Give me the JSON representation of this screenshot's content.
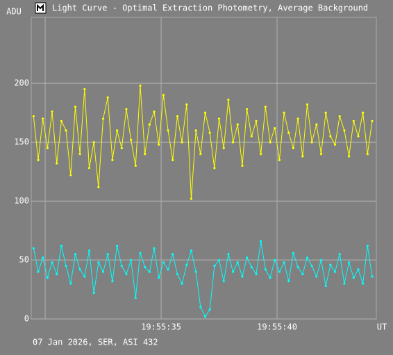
{
  "chart_data": {
    "type": "line",
    "title": "Light Curve - Optimal Extraction Photometry, Average Background",
    "ylabel": "ADU",
    "xlabel": "UT",
    "footer": "07 Jan 2026, SER, ASI 432",
    "x": [
      29.5,
      29.7,
      29.9,
      30.1,
      30.3,
      30.5,
      30.7,
      30.9,
      31.1,
      31.3,
      31.5,
      31.7,
      31.9,
      32.1,
      32.3,
      32.5,
      32.7,
      32.9,
      33.1,
      33.3,
      33.5,
      33.7,
      33.9,
      34.1,
      34.3,
      34.5,
      34.7,
      34.9,
      35.1,
      35.3,
      35.5,
      35.7,
      35.9,
      36.1,
      36.3,
      36.5,
      36.7,
      36.9,
      37.1,
      37.3,
      37.5,
      37.7,
      37.9,
      38.1,
      38.3,
      38.5,
      38.7,
      38.9,
      39.1,
      39.3,
      39.5,
      39.7,
      39.9,
      40.1,
      40.3,
      40.5,
      40.7,
      40.9,
      41.1,
      41.3,
      41.5,
      41.7,
      41.9,
      42.1,
      42.3,
      42.5,
      42.7,
      42.9,
      43.1,
      43.3,
      43.5,
      43.7,
      43.9,
      44.1
    ],
    "series": [
      {
        "color": "#ffff00",
        "values": [
          172,
          135,
          170,
          145,
          176,
          132,
          168,
          160,
          122,
          180,
          140,
          195,
          128,
          150,
          112,
          170,
          188,
          135,
          160,
          145,
          178,
          152,
          130,
          198,
          140,
          165,
          176,
          148,
          190,
          160,
          135,
          172,
          150,
          182,
          102,
          160,
          140,
          175,
          158,
          128,
          170,
          145,
          186,
          150,
          165,
          130,
          178,
          155,
          168,
          140,
          180,
          150,
          162,
          135,
          175,
          158,
          145,
          170,
          138,
          182,
          150,
          165,
          140,
          175,
          155,
          148,
          172,
          160,
          138,
          168,
          155,
          175,
          140,
          168
        ]
      },
      {
        "color": "#00ffff",
        "values": [
          60,
          40,
          52,
          35,
          48,
          38,
          62,
          45,
          30,
          55,
          42,
          36,
          58,
          22,
          48,
          40,
          55,
          32,
          62,
          45,
          38,
          50,
          18,
          56,
          44,
          40,
          60,
          35,
          48,
          42,
          55,
          38,
          30,
          46,
          58,
          40,
          10,
          2,
          8,
          45,
          50,
          32,
          55,
          40,
          48,
          36,
          52,
          44,
          38,
          66,
          42,
          35,
          50,
          40,
          48,
          32,
          56,
          44,
          38,
          52,
          45,
          36,
          50,
          28,
          46,
          40,
          55,
          30,
          48,
          35,
          42,
          30,
          62,
          36
        ]
      }
    ],
    "xlim": [
      29.4,
      44.28
    ],
    "xticks": [
      {
        "value": 30,
        "label": null
      },
      {
        "value": 35,
        "label": "19:55:35"
      },
      {
        "value": 40,
        "label": "19:55:40"
      }
    ],
    "ylim": [
      0,
      256
    ],
    "yticks": [
      0,
      50,
      100,
      150,
      200
    ],
    "grid": true
  }
}
